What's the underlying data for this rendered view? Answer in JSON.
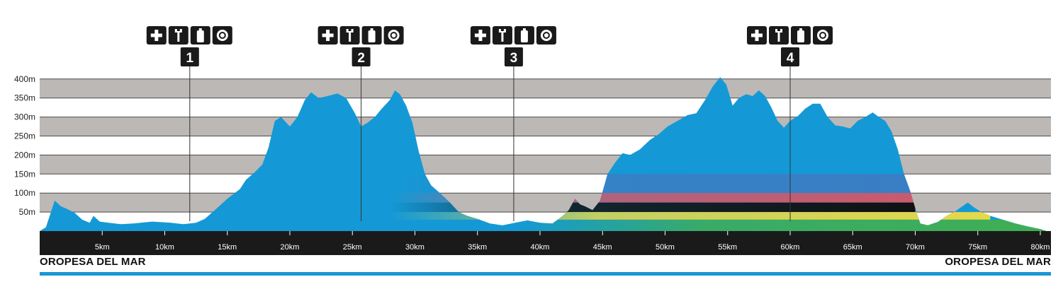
{
  "chart_data": {
    "type": "area",
    "title": "",
    "xlabel": "",
    "ylabel": "",
    "xlim": [
      0,
      81
    ],
    "ylim": [
      0,
      410
    ],
    "grid": true,
    "y_ticks": [
      {
        "value": 50,
        "label": "50m"
      },
      {
        "value": 100,
        "label": "100m"
      },
      {
        "value": 150,
        "label": "150m"
      },
      {
        "value": 200,
        "label": "200m"
      },
      {
        "value": 250,
        "label": "250m"
      },
      {
        "value": 300,
        "label": "300m"
      },
      {
        "value": 350,
        "label": "350m"
      },
      {
        "value": 400,
        "label": "400m"
      }
    ],
    "x_ticks": [
      {
        "value": 5,
        "label": "5km"
      },
      {
        "value": 10,
        "label": "10km"
      },
      {
        "value": 15,
        "label": "15km"
      },
      {
        "value": 20,
        "label": "20km"
      },
      {
        "value": 25,
        "label": "25km"
      },
      {
        "value": 30,
        "label": "30km"
      },
      {
        "value": 35,
        "label": "35km"
      },
      {
        "value": 40,
        "label": "40km"
      },
      {
        "value": 45,
        "label": "45km"
      },
      {
        "value": 50,
        "label": "50km"
      },
      {
        "value": 55,
        "label": "55km"
      },
      {
        "value": 60,
        "label": "60km"
      },
      {
        "value": 65,
        "label": "65km"
      },
      {
        "value": 70,
        "label": "70km"
      },
      {
        "value": 75,
        "label": "75km"
      },
      {
        "value": 80,
        "label": "80km"
      }
    ],
    "elevation_profile": {
      "x": [
        0,
        0.5,
        0.8,
        1.2,
        1.7,
        2.2,
        2.8,
        3.4,
        4.0,
        4.3,
        4.8,
        5.5,
        6.5,
        7.5,
        9.0,
        10.5,
        11.5,
        12.5,
        13.2,
        14.0,
        15.0,
        16.0,
        16.5,
        17.2,
        17.8,
        18.3,
        18.8,
        19.3,
        20.0,
        20.6,
        21.2,
        21.7,
        22.3,
        23.0,
        23.8,
        24.5,
        25.2,
        25.7,
        26.2,
        26.8,
        27.3,
        28.0,
        28.4,
        28.8,
        29.3,
        29.8,
        30.3,
        30.8,
        31.3,
        32.0,
        32.8,
        33.5,
        34.2,
        35.0,
        36.0,
        37.0,
        38.0,
        39.0,
        40.0,
        41.0,
        41.8,
        42.3,
        42.8,
        43.2,
        43.6,
        44.2,
        44.8,
        45.4,
        46.0,
        46.6,
        47.2,
        48.0,
        48.8,
        49.5,
        50.2,
        51.0,
        51.8,
        52.5,
        53.2,
        53.8,
        54.4,
        54.9,
        55.4,
        55.9,
        56.5,
        57.0,
        57.5,
        58.0,
        58.5,
        59.0,
        59.5,
        60.0,
        60.6,
        61.2,
        61.8,
        62.4,
        63.0,
        63.6,
        64.2,
        64.8,
        65.4,
        66.0,
        66.6,
        67.1,
        67.6,
        68.1,
        68.6,
        69.1,
        69.6,
        70.0,
        70.4,
        71.0,
        71.8,
        72.5,
        73.2,
        73.8,
        74.2,
        74.7,
        75.3,
        76.0,
        77.0,
        78.0,
        79.0,
        80.0,
        80.5
      ],
      "y": [
        0,
        10,
        40,
        80,
        65,
        58,
        48,
        30,
        22,
        40,
        25,
        22,
        18,
        20,
        25,
        22,
        18,
        22,
        32,
        55,
        85,
        110,
        135,
        155,
        175,
        220,
        290,
        300,
        275,
        300,
        345,
        365,
        350,
        355,
        362,
        350,
        310,
        275,
        285,
        300,
        320,
        345,
        370,
        360,
        330,
        285,
        210,
        150,
        120,
        100,
        75,
        50,
        40,
        32,
        20,
        15,
        22,
        28,
        22,
        20,
        40,
        55,
        85,
        70,
        65,
        55,
        80,
        150,
        180,
        205,
        200,
        215,
        240,
        255,
        275,
        290,
        305,
        310,
        345,
        380,
        405,
        385,
        330,
        350,
        360,
        355,
        370,
        355,
        325,
        290,
        272,
        290,
        302,
        322,
        335,
        335,
        300,
        278,
        275,
        270,
        290,
        300,
        312,
        300,
        290,
        262,
        215,
        150,
        105,
        60,
        20,
        15,
        24,
        40,
        52,
        66,
        75,
        62,
        50,
        40,
        30,
        20,
        12,
        5,
        0
      ]
    },
    "bands": [
      {
        "from_km": 28,
        "to_km": 70,
        "color": "#3a7ec4"
      },
      {
        "from_km": 28,
        "to_km": 70,
        "color": "#c95a6e"
      },
      {
        "from_km": 28,
        "to_km": 70,
        "color": "#111111"
      },
      {
        "from_km": 28,
        "to_km": 76,
        "color": "#e5d84a"
      },
      {
        "from_km": 38,
        "to_km": 81,
        "color": "#3fae54"
      }
    ],
    "stations": [
      {
        "number": "1",
        "km": 12.0
      },
      {
        "number": "2",
        "km": 25.7
      },
      {
        "number": "3",
        "km": 37.9
      },
      {
        "number": "4",
        "km": 60.0
      }
    ],
    "station_icons": [
      "plus-icon",
      "wrench-icon",
      "bottle-icon",
      "food-icon"
    ],
    "colors": {
      "profile": "#1499d6",
      "grid_band": "#bcb8b6",
      "x_axis_bar": "#1a1a1a",
      "footer_line": "#1a96d4",
      "station_box": "#1a1a1a"
    },
    "start_label": "OROPESA DEL MAR",
    "finish_label": "OROPESA DEL MAR"
  }
}
